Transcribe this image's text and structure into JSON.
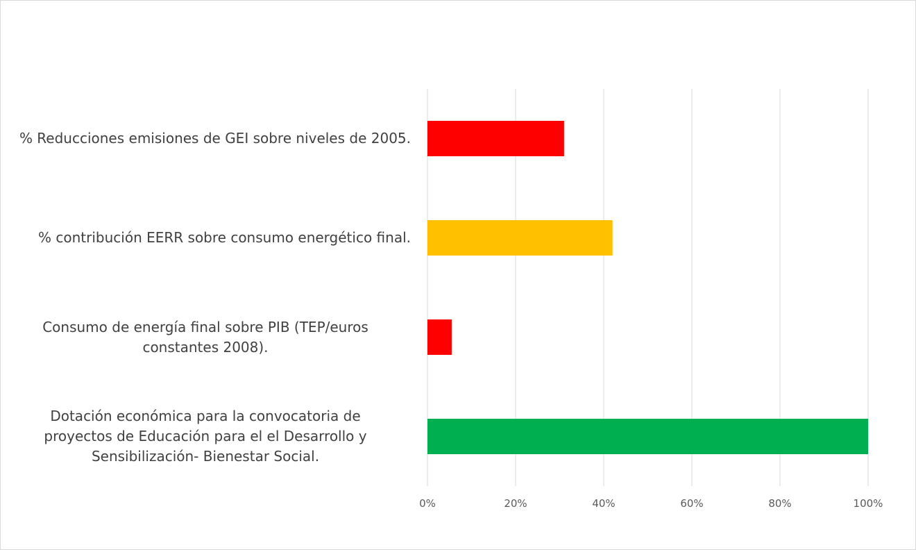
{
  "chart_data": {
    "type": "bar",
    "orientation": "horizontal",
    "title": "",
    "xlabel": "",
    "ylabel": "",
    "xlim": [
      0,
      100
    ],
    "x_ticks": [
      0,
      20,
      40,
      60,
      80,
      100
    ],
    "x_tick_labels": [
      "0%",
      "20%",
      "40%",
      "60%",
      "80%",
      "100%"
    ],
    "grid": true,
    "legend": "none",
    "categories": [
      "% Reducciones emisiones de GEI sobre niveles de 2005.",
      "% contribución EERR sobre consumo energético final.",
      "Consumo de energía final sobre PIB (TEP/euros\nconstantes 2008).",
      "Dotación económica para la convocatoria de\nproyectos de Educación para el el Desarrollo y\nSensibilización- Bienestar Social."
    ],
    "values": [
      31,
      42,
      5.5,
      100
    ],
    "colors": [
      "#ff0000",
      "#ffc000",
      "#ff0000",
      "#00b050"
    ],
    "gridline_color": "#d9d9d9",
    "text_color": "#404040"
  }
}
